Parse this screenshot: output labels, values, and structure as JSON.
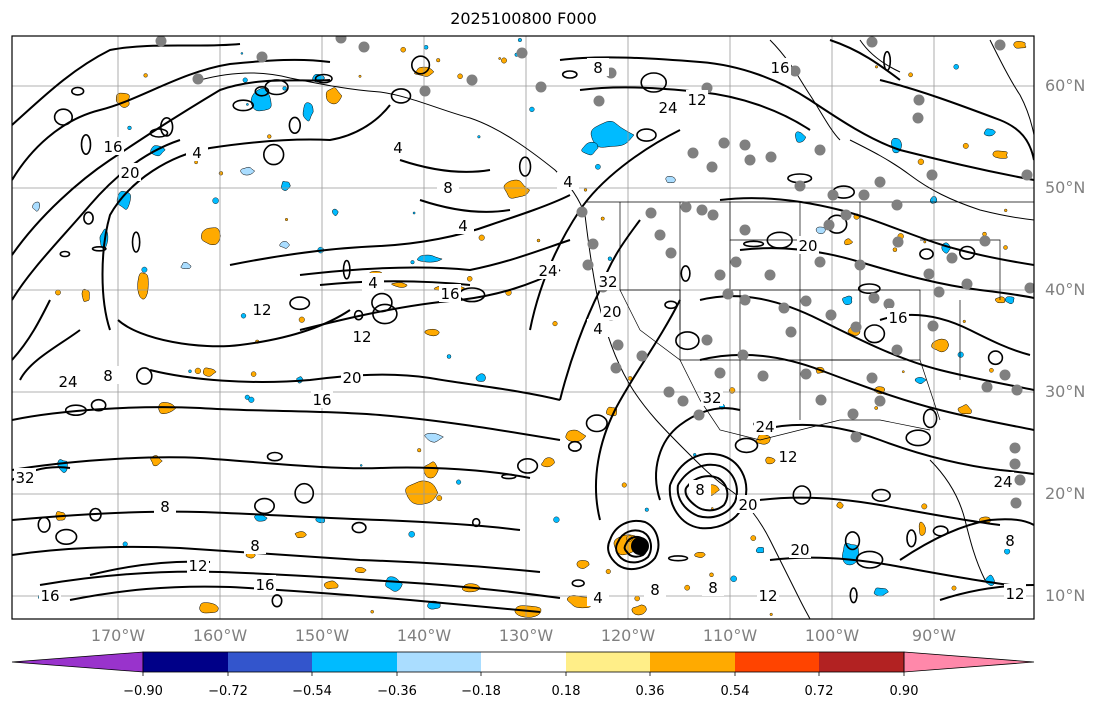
{
  "title": "2025100800 F000",
  "latitude_labels": [
    "60°N",
    "50°N",
    "40°N",
    "30°N",
    "20°N",
    "10°N"
  ],
  "longitude_labels": [
    "170°W",
    "160°W",
    "150°W",
    "140°W",
    "130°W",
    "120°W",
    "110°W",
    "100°W",
    "90°W"
  ],
  "contour_labels": [
    "16",
    "20",
    "4",
    "4",
    "8",
    "4",
    "4",
    "16",
    "12",
    "12",
    "20",
    "16",
    "8",
    "24",
    "32",
    "8",
    "8",
    "12",
    "16",
    "24",
    "32",
    "4",
    "20",
    "24",
    "32",
    "24",
    "12",
    "8",
    "20",
    "20",
    "12",
    "8",
    "8",
    "4",
    "4",
    "8",
    "16",
    "12",
    "20",
    "16",
    "24",
    "8",
    "12",
    "16"
  ],
  "colorbar": {
    "colors": [
      "#9933cc",
      "#000088",
      "#3355cc",
      "#00bbff",
      "#aaddff",
      "#ffffff",
      "#ffee88",
      "#ffaa00",
      "#ff4400",
      "#b22222",
      "#ff88aa"
    ],
    "tick_labels": [
      "−0.90",
      "−0.72",
      "−0.54",
      "−0.36",
      "−0.18",
      "0.18",
      "0.36",
      "0.54",
      "0.72",
      "0.90"
    ]
  },
  "colors": {
    "contour": "#000000",
    "border": "#000000",
    "grid": "#999999",
    "station_dot": "#808080",
    "positive_fill": "#ffaa00",
    "negative_fill": "#00bbff",
    "light_negative_fill": "#aaddff"
  }
}
